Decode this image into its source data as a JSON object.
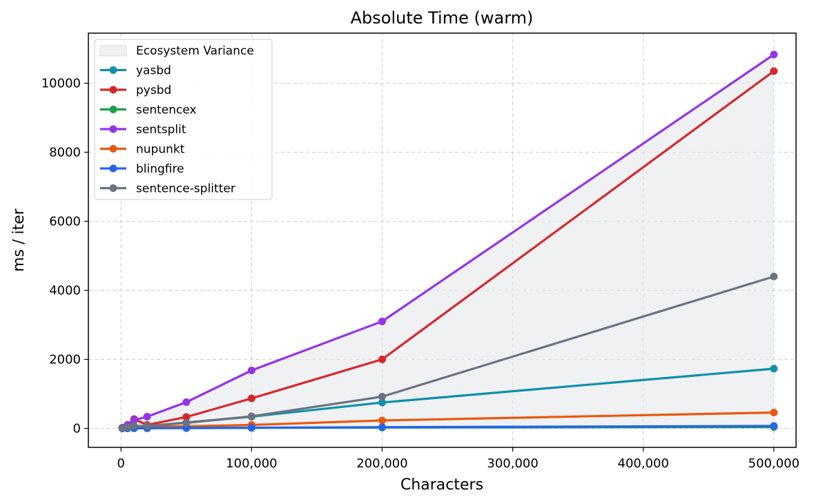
{
  "chart_data": {
    "type": "line",
    "title": "Absolute Time (warm)",
    "xlabel": "Characters",
    "ylabel": "ms / iter",
    "xlim": [
      -25000,
      517000
    ],
    "ylim": [
      -550,
      11450
    ],
    "xticks": [
      0,
      100000,
      200000,
      300000,
      400000,
      500000
    ],
    "xtick_labels": [
      "0",
      "100,000",
      "200,000",
      "300,000",
      "400,000",
      "500,000"
    ],
    "yticks": [
      0,
      2000,
      4000,
      6000,
      8000,
      10000
    ],
    "ytick_labels": [
      "0",
      "2000",
      "4000",
      "6000",
      "8000",
      "10000"
    ],
    "grid": true,
    "legend_position": "top-left",
    "variance_band": {
      "name": "Ecosystem Variance",
      "color": "#e5e7eb"
    },
    "x": [
      1000,
      5000,
      10000,
      20000,
      50000,
      100000,
      200000,
      500000
    ],
    "series": [
      {
        "name": "yasbd",
        "color": "#0e8fa8",
        "values": [
          5,
          20,
          40,
          70,
          170,
          340,
          750,
          1730
        ]
      },
      {
        "name": "pysbd",
        "color": "#d62728",
        "values": [
          20,
          100,
          270,
          100,
          330,
          870,
          2000,
          10350
        ]
      },
      {
        "name": "sentencex",
        "color": "#16a34a",
        "values": [
          0,
          1,
          2,
          4,
          8,
          15,
          25,
          40
        ]
      },
      {
        "name": "sentsplit",
        "color": "#9333ea",
        "values": [
          25,
          100,
          240,
          340,
          760,
          1680,
          3100,
          10830
        ]
      },
      {
        "name": "nupunkt",
        "color": "#ea580c",
        "values": [
          5,
          20,
          40,
          60,
          60,
          100,
          230,
          460
        ]
      },
      {
        "name": "blingfire",
        "color": "#2563eb",
        "values": [
          1,
          3,
          5,
          8,
          12,
          20,
          35,
          70
        ]
      },
      {
        "name": "sentence-splitter",
        "color": "#6b7280",
        "values": [
          10,
          40,
          70,
          70,
          160,
          350,
          920,
          4400
        ]
      }
    ]
  }
}
